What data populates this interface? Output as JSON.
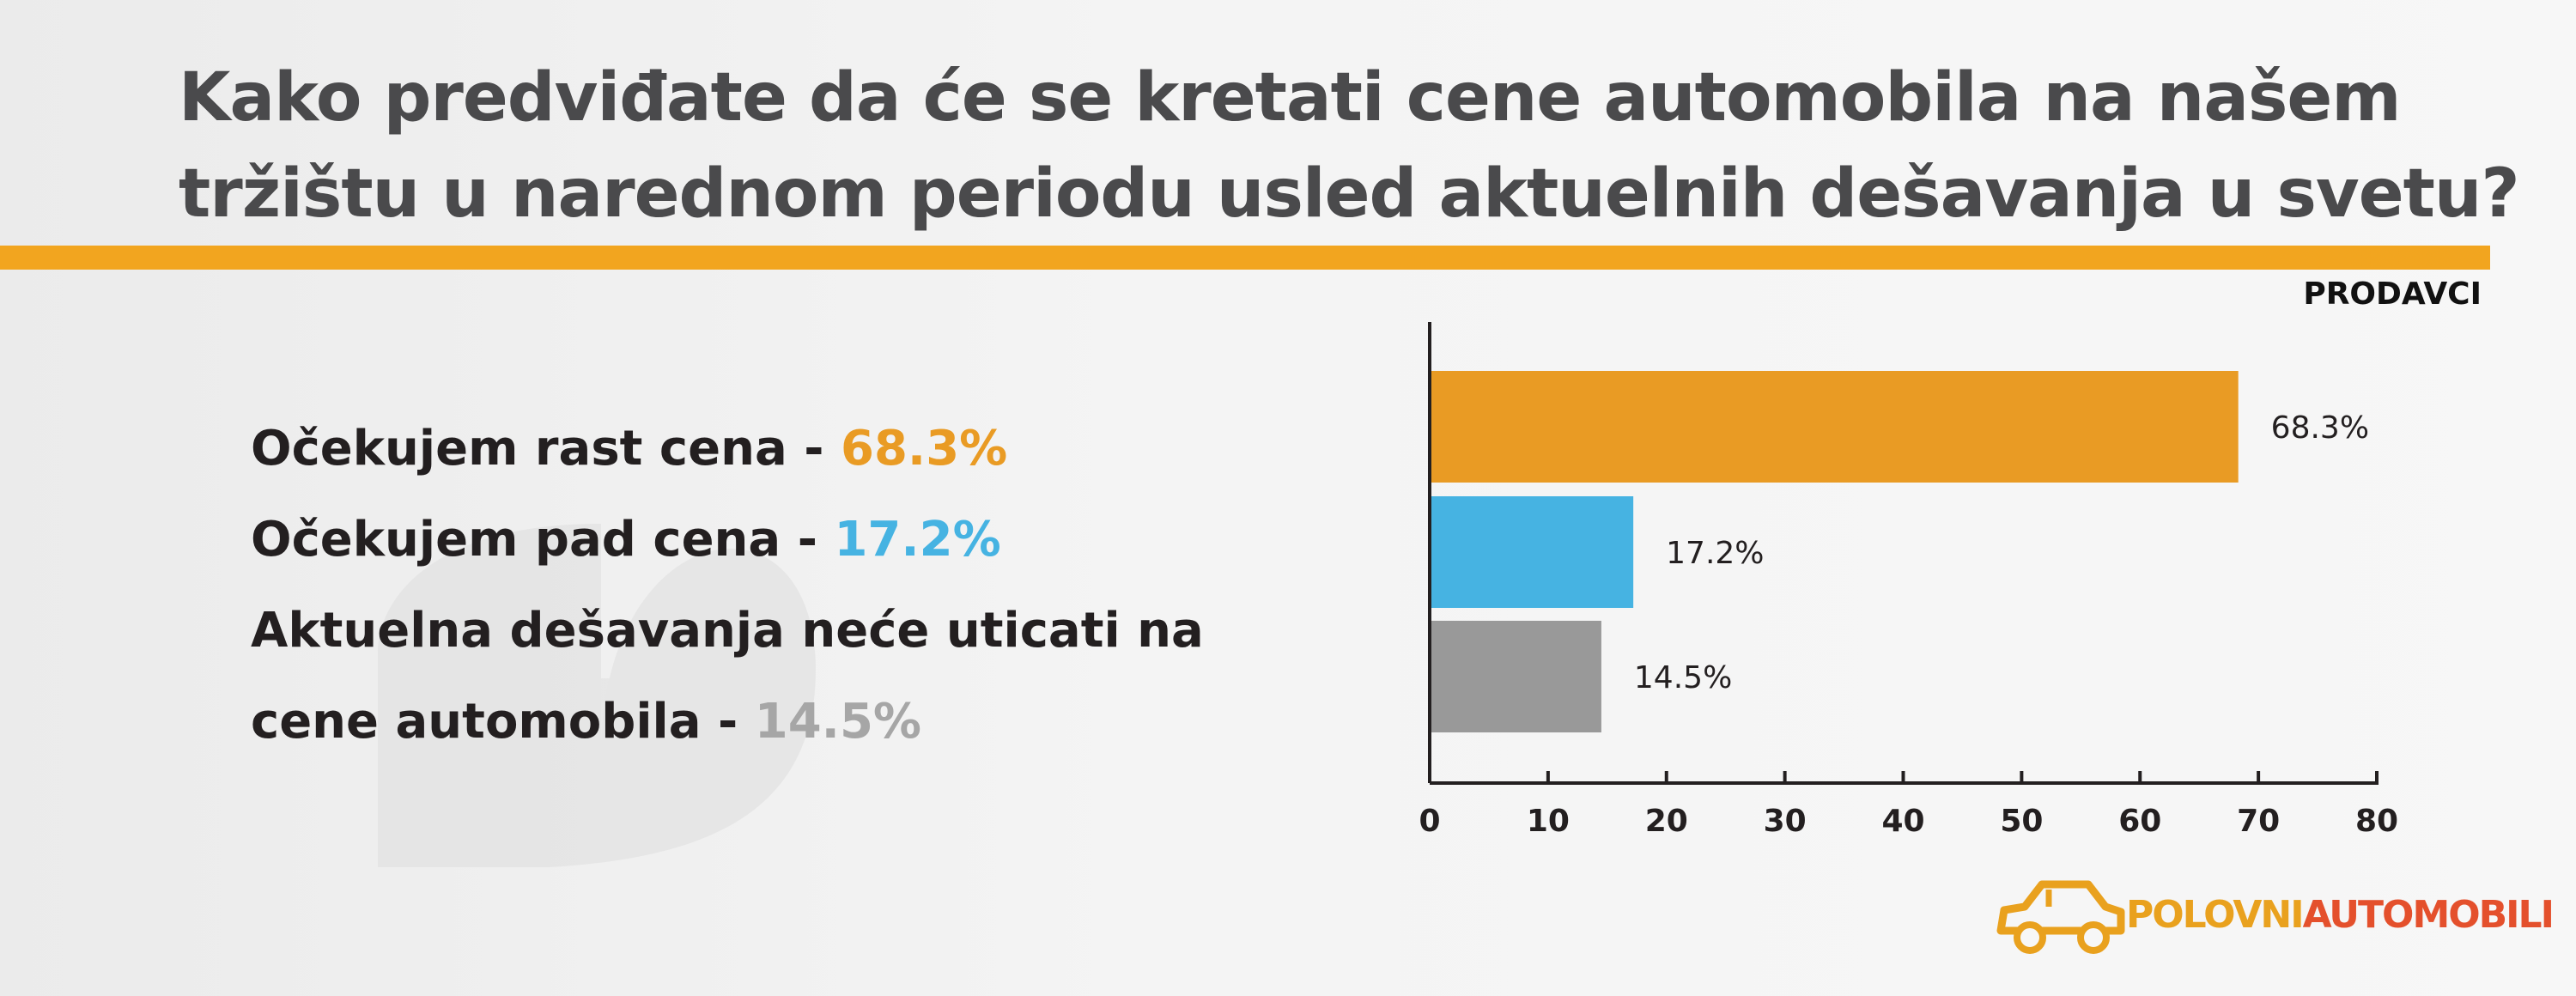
{
  "header": {
    "title_line1": "Kako predviđate da će se kretati cene automobila na našem",
    "title_line2": "tržištu u narednom periodu usled aktuelnih dešavanja u svetu?"
  },
  "legend": {
    "rise_text": "Očekujem rast cena - ",
    "rise_pct": "68.3%",
    "fall_text": "Očekujem pad cena - ",
    "fall_pct": "17.2%",
    "none_text_line1": "Aktuelna dešavanja neće uticati na",
    "none_text_line2": "cene automobila - ",
    "none_pct": "14.5%"
  },
  "chart_data": {
    "type": "bar",
    "orientation": "horizontal",
    "label": "PRODAVCI",
    "categories": [
      "Očekujem rast cena",
      "Očekujem pad cena",
      "Aktuelna dešavanja neće uticati na cene automobila"
    ],
    "values": [
      68.3,
      17.2,
      14.5
    ],
    "value_labels": [
      "68.3%",
      "17.2%",
      "14.5%"
    ],
    "colors": [
      "#e99b24",
      "#46b3e2",
      "#999999"
    ],
    "xlim": [
      0,
      80
    ],
    "xticks": [
      0,
      10,
      20,
      30,
      40,
      50,
      60,
      70,
      80
    ],
    "grid": false,
    "legend": "left"
  },
  "brand": {
    "name_part1": "POLOVNI",
    "name_part2": "AUTOMOBILI",
    "color_primary": "#e9a11e",
    "color_secondary": "#e4502c",
    "icon": "car-icon"
  }
}
